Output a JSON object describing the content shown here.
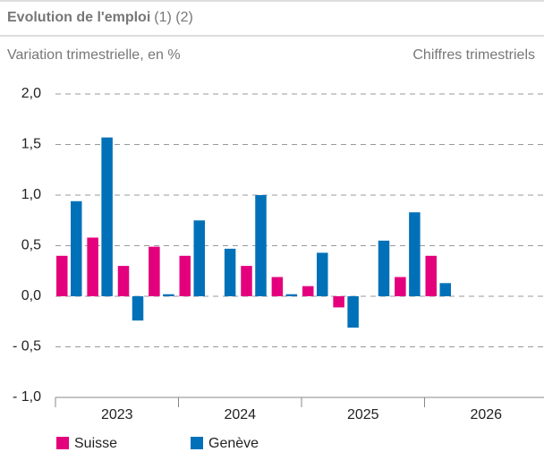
{
  "chart_data": {
    "type": "bar",
    "title": "Evolution de l'emploi",
    "title_note": "(1) (2)",
    "y_label": "Variation trimestrielle, en %",
    "subtitle": "Chiffres trimestriels",
    "groups": [
      "2023",
      "2024",
      "2025",
      "2026"
    ],
    "categories": [
      null,
      null,
      null,
      null,
      null,
      null,
      null,
      null,
      null,
      null,
      null,
      null,
      null,
      null,
      null,
      null
    ],
    "series": [
      {
        "name": "Suisse",
        "color": "#e4007d",
        "values": [
          0.4,
          0.58,
          0.3,
          0.49,
          0.4,
          null,
          0.3,
          0.19,
          0.1,
          -0.11,
          null,
          0.19,
          0.4,
          null,
          null,
          null
        ]
      },
      {
        "name": "Genève",
        "color": "#0071b9",
        "values": [
          0.94,
          1.57,
          -0.24,
          0.02,
          0.75,
          0.47,
          1.0,
          0.02,
          0.43,
          -0.31,
          0.55,
          0.83,
          0.13,
          null,
          null,
          null
        ]
      }
    ],
    "ylim": [
      -1.0,
      2.0
    ],
    "yticks": [
      {
        "value": -1.0,
        "label": "- 1,0"
      },
      {
        "value": -0.5,
        "label": "- 0,5"
      },
      {
        "value": 0.0,
        "label": "0,0"
      },
      {
        "value": 0.5,
        "label": "0,5"
      },
      {
        "value": 1.0,
        "label": "1,0"
      },
      {
        "value": 1.5,
        "label": "1,5"
      },
      {
        "value": 2.0,
        "label": "2,0"
      }
    ],
    "grid": true
  }
}
